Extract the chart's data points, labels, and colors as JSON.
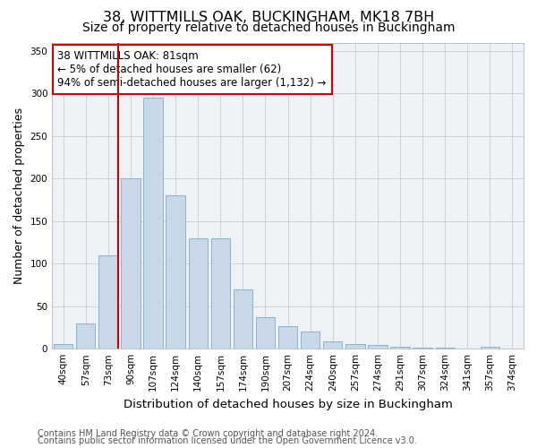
{
  "title": "38, WITTMILLS OAK, BUCKINGHAM, MK18 7BH",
  "subtitle": "Size of property relative to detached houses in Buckingham",
  "xlabel": "Distribution of detached houses by size in Buckingham",
  "ylabel": "Number of detached properties",
  "categories": [
    "40sqm",
    "57sqm",
    "73sqm",
    "90sqm",
    "107sqm",
    "124sqm",
    "140sqm",
    "157sqm",
    "174sqm",
    "190sqm",
    "207sqm",
    "224sqm",
    "240sqm",
    "257sqm",
    "274sqm",
    "291sqm",
    "307sqm",
    "324sqm",
    "341sqm",
    "357sqm",
    "374sqm"
  ],
  "values": [
    5,
    30,
    110,
    200,
    295,
    180,
    130,
    130,
    70,
    37,
    27,
    20,
    9,
    5,
    4,
    2,
    1,
    1,
    0,
    2,
    0
  ],
  "bar_color": "#c8d8e8",
  "bar_edgecolor": "#8ab4cc",
  "redline_index": 2,
  "ylim": [
    0,
    360
  ],
  "yticks": [
    0,
    50,
    100,
    150,
    200,
    250,
    300,
    350
  ],
  "annotation_text": "38 WITTMILLS OAK: 81sqm\n← 5% of detached houses are smaller (62)\n94% of semi-detached houses are larger (1,132) →",
  "annotation_box_facecolor": "#ffffff",
  "annotation_box_edgecolor": "#cc0000",
  "footer_line1": "Contains HM Land Registry data © Crown copyright and database right 2024.",
  "footer_line2": "Contains public sector information licensed under the Open Government Licence v3.0.",
  "bg_color": "#eef2f7",
  "grid_color": "#cccccc",
  "title_fontsize": 11.5,
  "subtitle_fontsize": 10,
  "xlabel_fontsize": 9.5,
  "ylabel_fontsize": 9,
  "tick_fontsize": 7.5,
  "annotation_fontsize": 8.5,
  "footer_fontsize": 7
}
